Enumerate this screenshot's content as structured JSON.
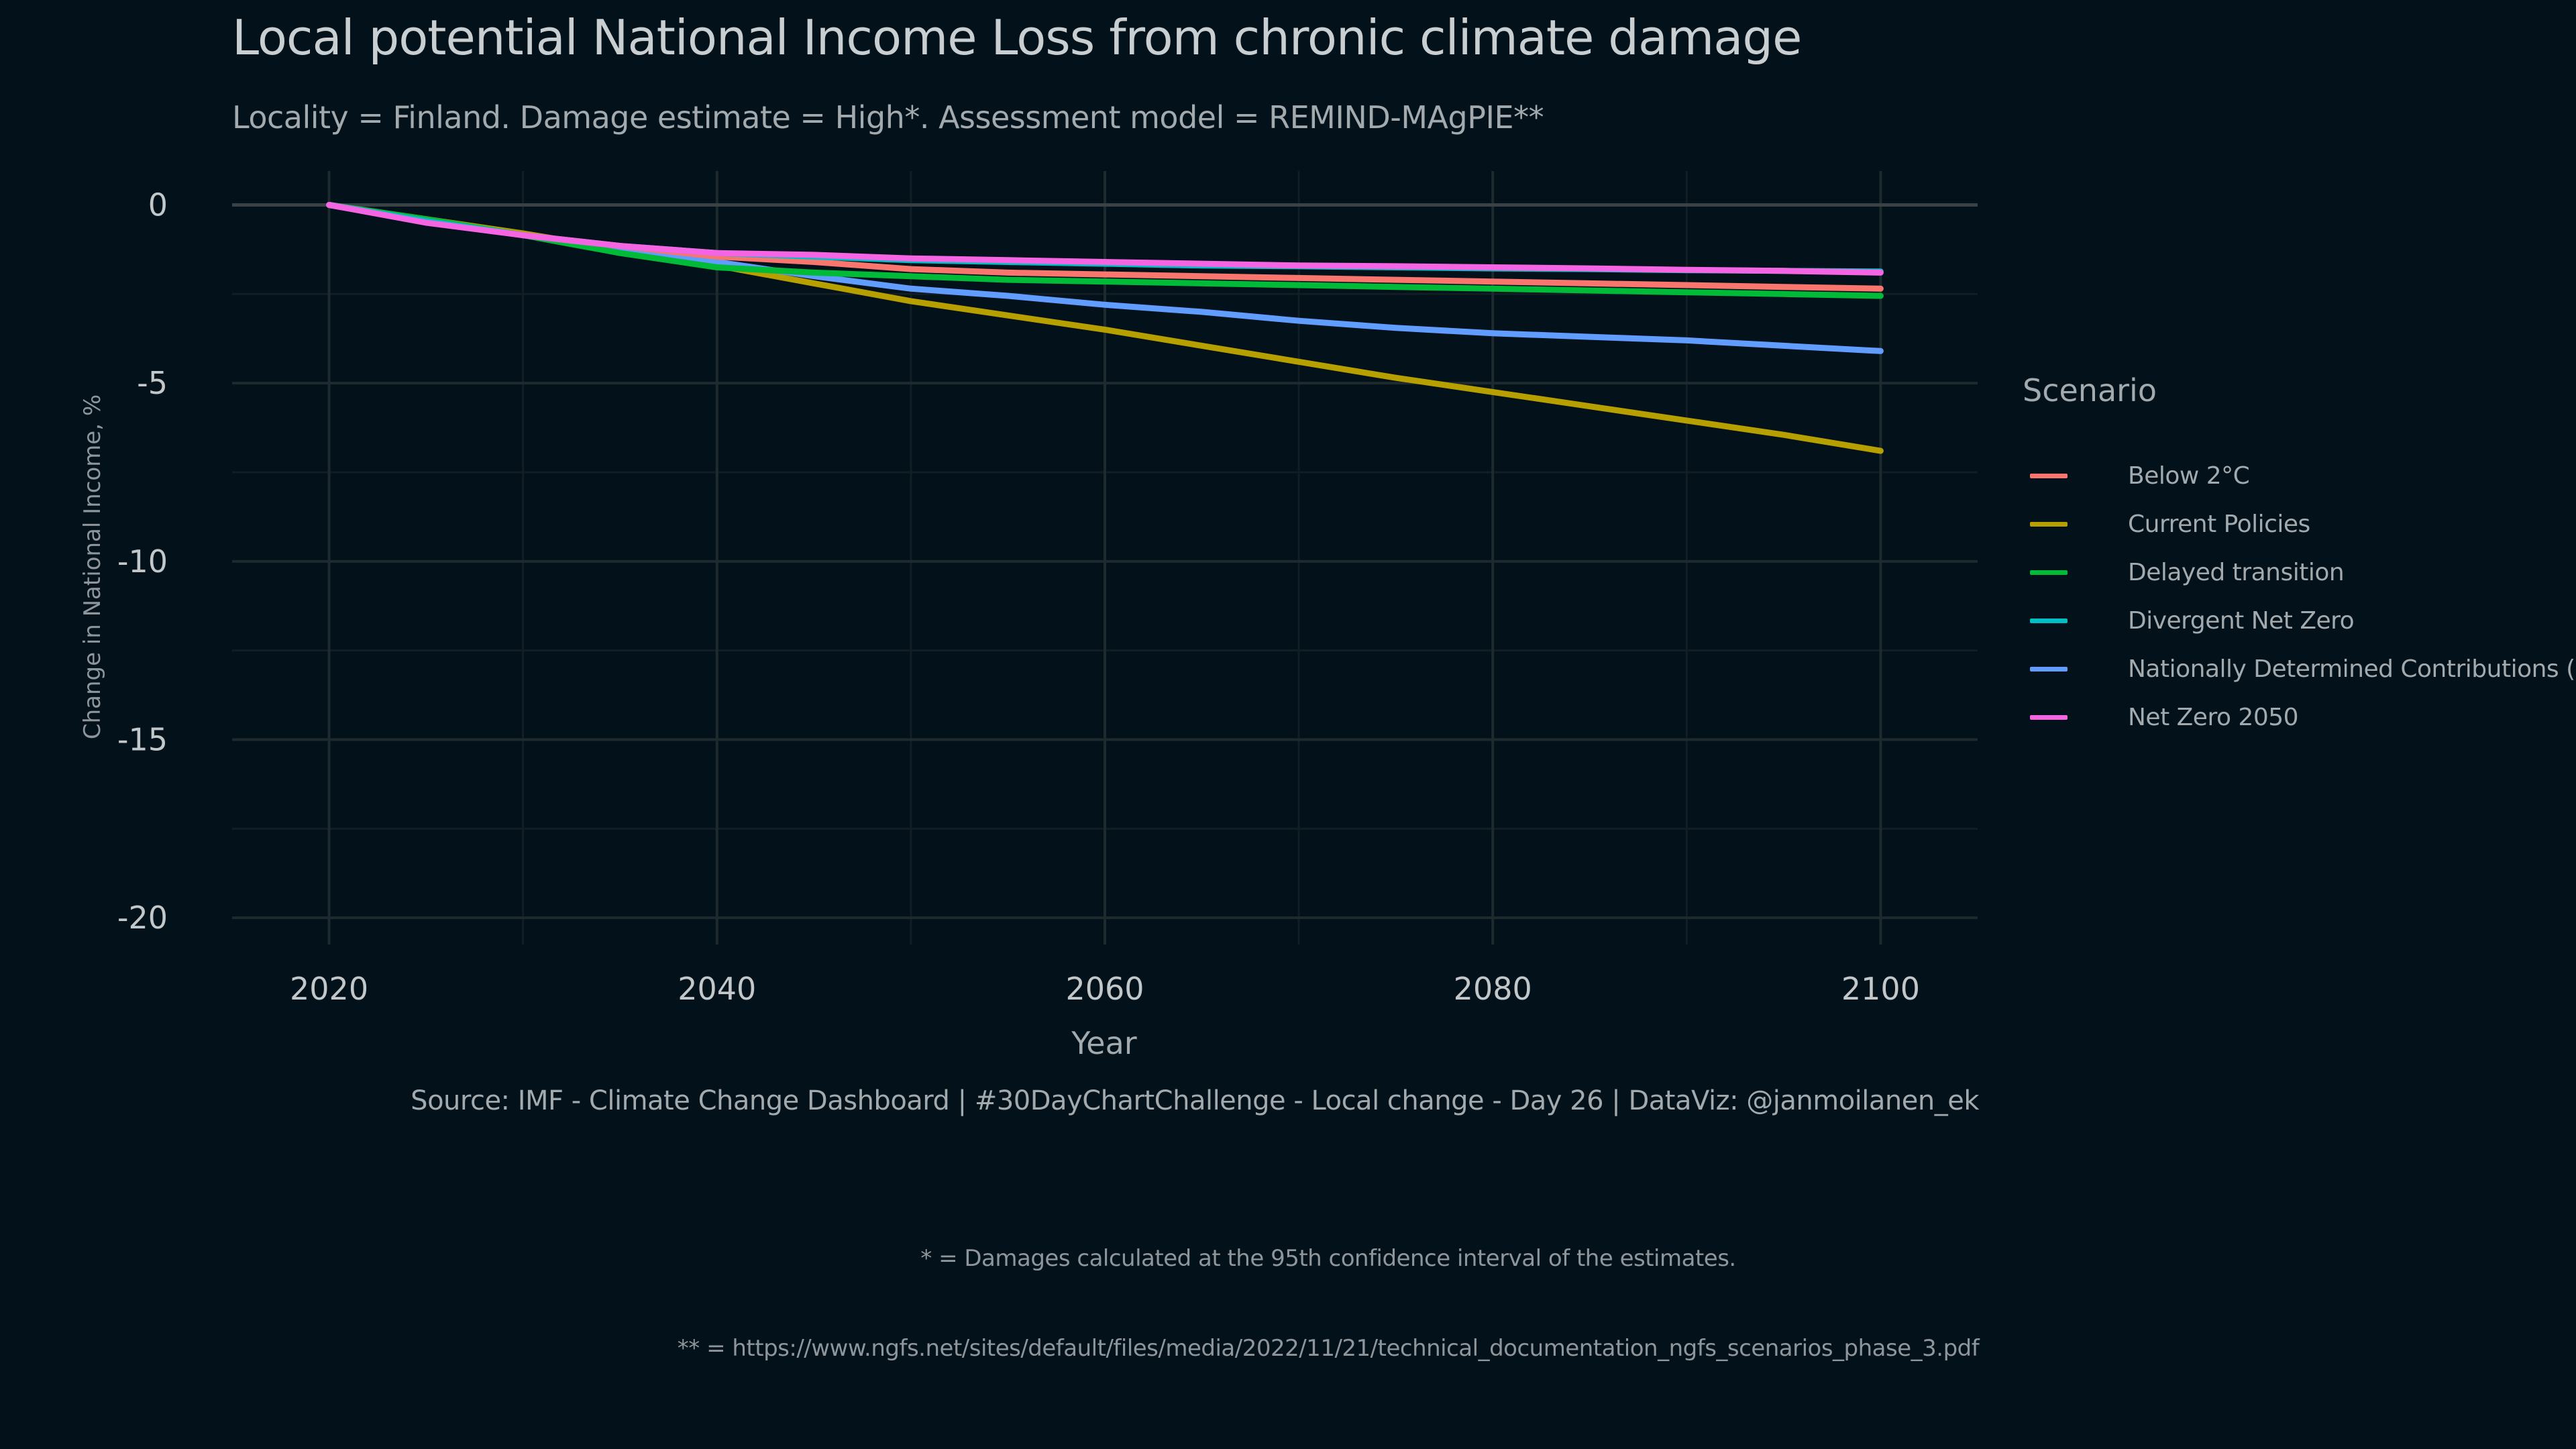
{
  "title": "Local potential National Income Loss from chronic climate damage",
  "subtitle": "Locality = Finland. Damage estimate = High*. Assessment model = REMIND-MAgPIE**",
  "caption": {
    "source": "Source: IMF - Climate Change Dashboard | #30DayChartChallenge - Local change - Day 26 | DataViz: @janmoilanen_ek",
    "note1": "* = Damages calculated at the 95th confidence interval of the estimates.",
    "note2": "** = https://www.ngfs.net/sites/default/files/media/2022/11/21/technical_documentation_ngfs_scenarios_phase_3.pdf"
  },
  "colors": {
    "background": "#02111a",
    "grid_major": "#1f2a2e",
    "grid_minor": "#121e23",
    "zero_line": "#3a4246",
    "text": "#c2c7ca"
  },
  "chart_data": {
    "type": "line",
    "xlabel": "Year",
    "ylabel": "Change in National Income, %",
    "xlim": [
      2015,
      2105
    ],
    "ylim": [
      -20,
      0
    ],
    "x_ticks": [
      2020,
      2040,
      2060,
      2080,
      2100
    ],
    "y_ticks": [
      0,
      -5,
      -10,
      -15,
      -20
    ],
    "grid": true,
    "legend": {
      "title": "Scenario",
      "placement": "right"
    },
    "x": [
      2020,
      2025,
      2030,
      2035,
      2040,
      2045,
      2050,
      2055,
      2060,
      2065,
      2070,
      2075,
      2080,
      2085,
      2090,
      2095,
      2100
    ],
    "series": [
      {
        "name": "Below 2°C",
        "color": "#f8766d",
        "values": [
          0,
          -0.45,
          -0.85,
          -1.15,
          -1.45,
          -1.6,
          -1.8,
          -1.9,
          -1.95,
          -2.0,
          -2.05,
          -2.1,
          -2.15,
          -2.2,
          -2.25,
          -2.3,
          -2.35
        ]
      },
      {
        "name": "Current Policies",
        "color": "#b79f00",
        "values": [
          0,
          -0.4,
          -0.8,
          -1.25,
          -1.7,
          -2.2,
          -2.7,
          -3.1,
          -3.5,
          -3.95,
          -4.4,
          -4.85,
          -5.25,
          -5.65,
          -6.05,
          -6.45,
          -6.9
        ]
      },
      {
        "name": "Delayed transition",
        "color": "#00ba38",
        "values": [
          0,
          -0.4,
          -0.85,
          -1.35,
          -1.75,
          -1.9,
          -2.0,
          -2.1,
          -2.15,
          -2.2,
          -2.25,
          -2.3,
          -2.35,
          -2.4,
          -2.45,
          -2.5,
          -2.55
        ]
      },
      {
        "name": "Divergent Net Zero",
        "color": "#00bfc4",
        "values": [
          0,
          -0.45,
          -0.85,
          -1.15,
          -1.35,
          -1.45,
          -1.55,
          -1.6,
          -1.65,
          -1.7,
          -1.72,
          -1.75,
          -1.78,
          -1.8,
          -1.83,
          -1.85,
          -1.87
        ]
      },
      {
        "name": "Nationally Determined Contributions (NDCs)",
        "color": "#619cff",
        "values": [
          0,
          -0.45,
          -0.85,
          -1.2,
          -1.6,
          -2.0,
          -2.35,
          -2.55,
          -2.8,
          -3.0,
          -3.25,
          -3.45,
          -3.6,
          -3.7,
          -3.8,
          -3.95,
          -4.1
        ]
      },
      {
        "name": "Net Zero 2050",
        "color": "#f564e3",
        "values": [
          0,
          -0.5,
          -0.85,
          -1.15,
          -1.35,
          -1.4,
          -1.5,
          -1.55,
          -1.6,
          -1.65,
          -1.7,
          -1.72,
          -1.75,
          -1.78,
          -1.82,
          -1.85,
          -1.9
        ]
      }
    ]
  }
}
